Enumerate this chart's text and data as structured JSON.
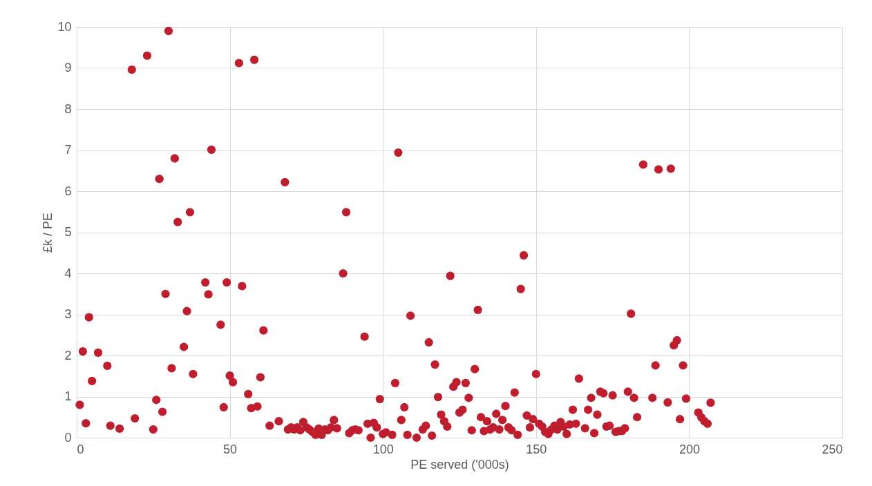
{
  "chart_data": {
    "type": "scatter",
    "xlabel": "PE served ('000s)",
    "ylabel": "£k / PE",
    "x": [
      1,
      2,
      3,
      4,
      5,
      7,
      10,
      11,
      14,
      18,
      19,
      23,
      25,
      26,
      27,
      28,
      29,
      30,
      31,
      32,
      33,
      35,
      36,
      37,
      38,
      42,
      43,
      44,
      47,
      48,
      49,
      50,
      51,
      53,
      54,
      56,
      57,
      58,
      59,
      60,
      61,
      63,
      66,
      68,
      69,
      70,
      71,
      72,
      73,
      74,
      75,
      76,
      77,
      78,
      79,
      80,
      81,
      82,
      83,
      84,
      85,
      87,
      88,
      89,
      90,
      91,
      92,
      94,
      95,
      96,
      97,
      98,
      99,
      100,
      101,
      103,
      104,
      105,
      106,
      107,
      108,
      109,
      111,
      113,
      114,
      115,
      116,
      117,
      118,
      119,
      120,
      121,
      122,
      123,
      124,
      125,
      126,
      127,
      128,
      129,
      130,
      131,
      132,
      133,
      134,
      135,
      136,
      137,
      138,
      139,
      140,
      141,
      142,
      143,
      144,
      145,
      146,
      147,
      148,
      149,
      150,
      151,
      152,
      153,
      154,
      155,
      156,
      157,
      158,
      159,
      160,
      161,
      162,
      163,
      164,
      166,
      167,
      168,
      169,
      170,
      171,
      172,
      173,
      174,
      175,
      176,
      177,
      178,
      179,
      180,
      181,
      182,
      183,
      185,
      188,
      189,
      190,
      193,
      194,
      195,
      196,
      197,
      198,
      199,
      203,
      204,
      205,
      206,
      207
    ],
    "values": [
      0.8,
      2.1,
      0.35,
      2.93,
      1.38,
      2.07,
      1.75,
      0.29,
      0.22,
      8.96,
      0.47,
      9.3,
      0.2,
      0.92,
      6.3,
      0.63,
      3.5,
      9.9,
      1.69,
      6.8,
      5.25,
      2.21,
      3.08,
      5.49,
      1.55,
      3.78,
      3.49,
      7.01,
      2.75,
      0.74,
      3.78,
      1.51,
      1.35,
      9.12,
      3.69,
      1.06,
      0.72,
      9.2,
      0.76,
      1.47,
      2.61,
      0.29,
      0.4,
      6.22,
      0.2,
      0.25,
      0.2,
      0.25,
      0.18,
      0.38,
      0.25,
      0.2,
      0.14,
      0.07,
      0.22,
      0.07,
      0.2,
      0.18,
      0.25,
      0.43,
      0.23,
      4.0,
      5.49,
      0.11,
      0.18,
      0.2,
      0.18,
      2.46,
      0.34,
      0.0,
      0.36,
      0.25,
      0.94,
      0.09,
      0.13,
      0.07,
      1.33,
      6.94,
      0.43,
      0.74,
      0.07,
      2.97,
      0.0,
      0.2,
      0.29,
      2.32,
      0.05,
      1.78,
      0.99,
      0.56,
      0.4,
      0.27,
      3.94,
      1.24,
      1.35,
      0.61,
      0.68,
      1.33,
      0.97,
      0.18,
      1.67,
      3.11,
      0.5,
      0.16,
      0.4,
      0.2,
      0.25,
      0.58,
      0.2,
      0.43,
      0.77,
      0.25,
      0.18,
      1.1,
      0.07,
      3.62,
      4.44,
      0.54,
      0.25,
      0.45,
      1.55,
      0.34,
      0.27,
      0.14,
      0.09,
      0.2,
      0.29,
      0.2,
      0.38,
      0.27,
      0.09,
      0.32,
      0.68,
      0.34,
      1.44,
      0.23,
      0.68,
      0.97,
      0.11,
      0.56,
      1.12,
      1.08,
      0.27,
      0.29,
      1.03,
      0.14,
      0.16,
      0.16,
      0.23,
      1.12,
      3.02,
      0.97,
      0.5,
      6.65,
      0.97,
      1.76,
      6.53,
      0.86,
      6.55,
      2.25,
      2.37,
      0.45,
      1.76,
      0.95,
      0.61,
      0.49,
      0.4,
      0.34,
      0.85
    ],
    "color": "#be1e2d",
    "marker": "circle",
    "grid": true,
    "xlim": [
      0,
      250
    ],
    "xticks": [
      0,
      50,
      100,
      150,
      200,
      250
    ],
    "ylim": [
      0,
      10
    ],
    "yticks": [
      0,
      1,
      2,
      3,
      4,
      5,
      6,
      7,
      8,
      9,
      10
    ]
  }
}
